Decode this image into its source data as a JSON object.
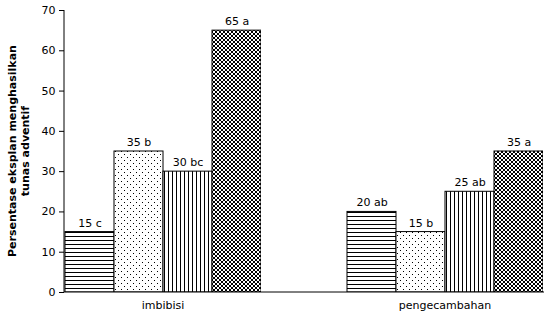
{
  "chart_data": {
    "type": "bar",
    "y_label": "Persentase eksplan menghasilkan\ntunas adventif",
    "categories": [
      "imbibisi",
      "pengecambahan"
    ],
    "series": [
      {
        "color": "#000000",
        "values": [
          15,
          20
        ],
        "value_labels": [
          "15 c",
          "20 ab"
        ]
      },
      {
        "color": "#000000",
        "values": [
          35,
          15
        ],
        "value_labels": [
          "35 b",
          "15 b"
        ]
      },
      {
        "color": "#000000",
        "values": [
          30,
          25
        ],
        "value_labels": [
          "30 bc",
          "25 ab"
        ]
      },
      {
        "color": "#000000",
        "values": [
          65,
          35
        ],
        "value_labels": [
          "65 a",
          "35 a"
        ]
      }
    ],
    "ylim": [
      0,
      70
    ],
    "yticks": [
      0,
      10,
      20,
      30,
      40,
      50,
      60,
      70
    ],
    "grid": false,
    "data_labels": true
  }
}
